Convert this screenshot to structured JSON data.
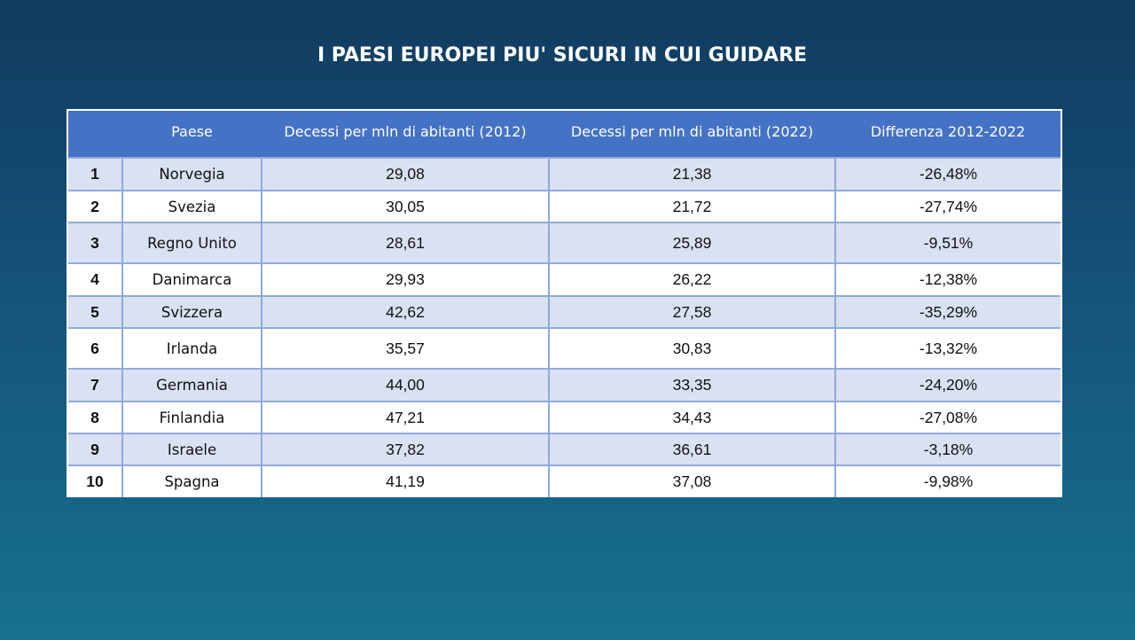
{
  "chart_data": {
    "type": "table",
    "title": "I PAESI EUROPEI PIU' SICURI IN CUI GUIDARE",
    "columns": [
      "",
      "Paese",
      "Decessi per mln di abitanti (2012)",
      "Decessi per mln di abitanti (2022)",
      "Differenza 2012-2022"
    ],
    "rows": [
      [
        "1",
        "Norvegia",
        "29,08",
        "21,38",
        "-26,48%"
      ],
      [
        "2",
        "Svezia",
        "30,05",
        "21,72",
        "-27,74%"
      ],
      [
        "3",
        "Regno Unito",
        "28,61",
        "25,89",
        "-9,51%"
      ],
      [
        "4",
        "Danimarca",
        "29,93",
        "26,22",
        "-12,38%"
      ],
      [
        "5",
        "Svizzera",
        "42,62",
        "27,58",
        "-35,29%"
      ],
      [
        "6",
        "Irlanda",
        "35,57",
        "30,83",
        "-13,32%"
      ],
      [
        "7",
        "Germania",
        "44,00",
        "33,35",
        "-24,20%"
      ],
      [
        "8",
        "Finlandia",
        "47,21",
        "34,43",
        "-27,08%"
      ],
      [
        "9",
        "Israele",
        "37,82",
        "36,61",
        "-3,18%"
      ],
      [
        "10",
        "Spagna",
        "41,19",
        "37,08",
        "-9,98%"
      ]
    ]
  },
  "colors": {
    "header_bg": "#4472c4",
    "band_odd": "#d9e1f2",
    "band_even": "#ffffff",
    "grid": "#8faadc",
    "background_top": "#113b5f",
    "background_bottom": "#177190"
  }
}
